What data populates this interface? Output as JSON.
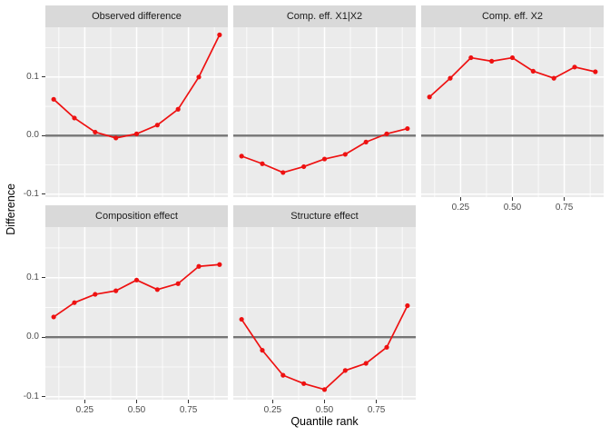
{
  "chart_data": {
    "type": "line",
    "title": "",
    "xlabel": "Quantile rank",
    "ylabel": "Difference",
    "x": [
      0.1,
      0.2,
      0.3,
      0.4,
      0.5,
      0.6,
      0.7,
      0.8,
      0.9
    ],
    "panels": [
      {
        "title": "Observed difference",
        "values": [
          0.062,
          0.03,
          0.006,
          -0.004,
          0.003,
          0.018,
          0.045,
          0.1,
          0.172
        ]
      },
      {
        "title": "Comp. eff. X1|X2",
        "values": [
          -0.035,
          -0.048,
          -0.063,
          -0.053,
          -0.04,
          -0.032,
          -0.011,
          0.003,
          0.012
        ]
      },
      {
        "title": "Comp. eff. X2",
        "values": [
          0.066,
          0.098,
          0.133,
          0.127,
          0.133,
          0.11,
          0.098,
          0.117,
          0.109
        ]
      },
      {
        "title": "Composition effect",
        "values": [
          0.034,
          0.058,
          0.072,
          0.078,
          0.096,
          0.08,
          0.09,
          0.119,
          0.122
        ]
      },
      {
        "title": "Structure effect",
        "values": [
          0.03,
          -0.022,
          -0.064,
          -0.078,
          -0.088,
          -0.056,
          -0.044,
          -0.017,
          0.053
        ]
      }
    ],
    "x_ticks": {
      "values": [
        0.25,
        0.5,
        0.75
      ],
      "labels": [
        "0.25",
        "0.50",
        "0.75"
      ]
    },
    "y_ticks": {
      "values": [
        0.1,
        0.0,
        -0.1
      ],
      "labels": [
        "0.1",
        "0.0",
        "-0.1"
      ]
    },
    "minor_x": [
      0.125,
      0.375,
      0.625,
      0.875
    ],
    "minor_y": [
      -0.05,
      0.05,
      0.15
    ],
    "xlim": [
      0.06,
      0.94
    ],
    "ylim": [
      -0.105,
      0.185
    ],
    "grid": true,
    "zero_line": 0,
    "legend": "none",
    "colors": {
      "line": "#EE1111",
      "zero_line": "#757575",
      "panel_bg": "#EBEBEB",
      "strip_bg": "#D9D9D9",
      "grid": "#FFFFFF",
      "tick_label": "#4D4D4D",
      "figure_bg": "#FFFFFF"
    }
  }
}
